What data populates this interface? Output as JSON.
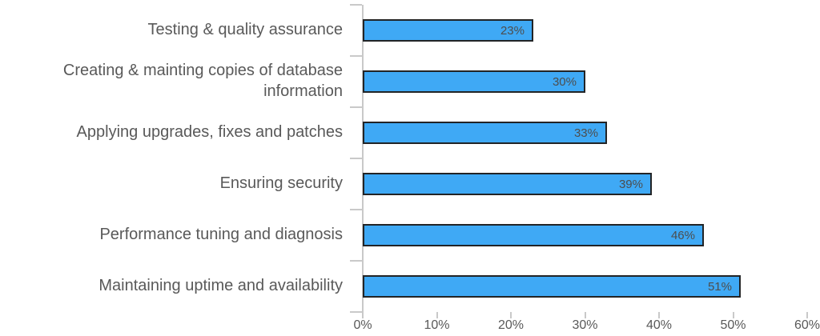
{
  "chart_data": {
    "type": "bar",
    "orientation": "horizontal",
    "title": "",
    "xlabel": "",
    "ylabel": "",
    "categories": [
      "Testing & quality assurance",
      "Creating & mainting copies of database information",
      "Applying upgrades, fixes and patches",
      "Ensuring security",
      "Performance tuning and diagnosis",
      "Maintaining uptime and availability"
    ],
    "values": [
      23,
      30,
      33,
      39,
      46,
      51
    ],
    "value_labels": [
      "23%",
      "30%",
      "33%",
      "39%",
      "46%",
      "51%"
    ],
    "x_tick_labels": [
      "0%",
      "10%",
      "20%",
      "30%",
      "40%",
      "50%",
      "60%"
    ],
    "x_tick_values": [
      0,
      10,
      20,
      30,
      40,
      50,
      60
    ],
    "xlim": [
      0,
      60
    ],
    "grid": false,
    "legend": false,
    "colors": {
      "bar_fill": "#3FA9F5",
      "bar_border": "#222426",
      "axis": "#c9c9c9",
      "category_text": "#595959",
      "tick_text": "#595959",
      "value_text": "#4d4d4d",
      "background": "#ffffff"
    }
  }
}
